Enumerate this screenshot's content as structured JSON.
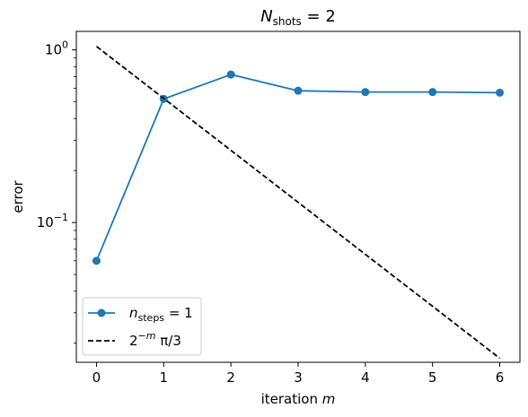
{
  "chart_data": {
    "type": "line",
    "title": {
      "prefix": "N",
      "sub": "shots",
      "suffix": " = 2"
    },
    "xlabel": {
      "text": "iteration ",
      "var": "m"
    },
    "ylabel": "error",
    "x_ticks": [
      "0",
      "1",
      "2",
      "3",
      "4",
      "5",
      "6"
    ],
    "y_scale": "log",
    "y_ticks": [
      {
        "value": 1,
        "base": "10",
        "exp": "0"
      },
      {
        "value": 0.1,
        "base": "10",
        "exp": "−1"
      }
    ],
    "xlim": [
      -0.3,
      6.3
    ],
    "ylim": [
      0.0155,
      1.28
    ],
    "grid": false,
    "legend_position": "lower-left",
    "series": [
      {
        "name": {
          "prefix": "n",
          "sub": "steps",
          "suffix": " = 1"
        },
        "style": "solid-marker",
        "color": "#1f77b4",
        "x": [
          0,
          1,
          2,
          3,
          4,
          5,
          6
        ],
        "y": [
          0.06,
          0.52,
          0.72,
          0.58,
          0.57,
          0.57,
          0.565
        ]
      },
      {
        "name": {
          "base": "2",
          "sup": "−m",
          "suffix": " π/3"
        },
        "style": "dashed",
        "color": "#000000",
        "x": [
          0,
          1,
          2,
          3,
          4,
          5,
          6
        ],
        "y": [
          1.0472,
          0.5236,
          0.2618,
          0.1309,
          0.06545,
          0.03272,
          0.01636
        ]
      }
    ]
  }
}
